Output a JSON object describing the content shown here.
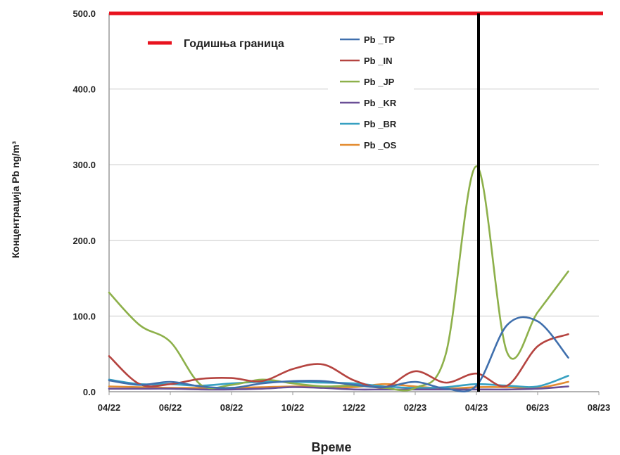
{
  "chart_data": {
    "type": "line",
    "xlabel": "Време",
    "ylabel": "Концентрација Pb ng/m³",
    "ylim": [
      0,
      500
    ],
    "xlim": [
      "2022-04",
      "2023-08"
    ],
    "x_tick_labels": [
      "04/22",
      "06/22",
      "08/22",
      "10/22",
      "12/22",
      "02/23",
      "04/23",
      "06/23",
      "08/23"
    ],
    "y_tick_labels": [
      "0.0",
      "100.0",
      "200.0",
      "300.0",
      "400.0",
      "500.0"
    ],
    "y_ticks": [
      0,
      100,
      200,
      300,
      400,
      500
    ],
    "grid": "horizontal",
    "legend_position": "top-center",
    "limit_line": {
      "name": "Годишња граница",
      "value": 500,
      "color": "#e8121e"
    },
    "vertical_marker": {
      "x": "2023-04",
      "color": "#000000"
    },
    "x": [
      "2022-04",
      "2022-05",
      "2022-06",
      "2022-07",
      "2022-08",
      "2022-09",
      "2022-10",
      "2022-11",
      "2022-12",
      "2023-01",
      "2023-02",
      "2023-03",
      "2023-04",
      "2023-05",
      "2023-06",
      "2023-07"
    ],
    "series": [
      {
        "name": "Pb _TP",
        "color": "#3f6fad",
        "values": [
          15,
          9,
          13,
          7,
          5,
          11,
          14,
          14,
          9,
          6,
          13,
          4,
          8,
          88,
          93,
          45
        ]
      },
      {
        "name": "Pb _IN",
        "color": "#b54440",
        "values": [
          47,
          10,
          10,
          17,
          18,
          14,
          30,
          36,
          15,
          6,
          27,
          12,
          24,
          8,
          60,
          76
        ]
      },
      {
        "name": "Pb _JP",
        "color": "#8db04a",
        "values": [
          131,
          88,
          66,
          9,
          9,
          16,
          11,
          7,
          8,
          5,
          5,
          50,
          298,
          52,
          105,
          159
        ]
      },
      {
        "name": "Pb _KR",
        "color": "#6a4f96",
        "values": [
          4,
          4,
          4,
          3,
          3,
          4,
          6,
          5,
          3,
          3,
          3,
          3,
          3,
          3,
          4,
          7
        ]
      },
      {
        "name": "Pb _BR",
        "color": "#36a0c1",
        "values": [
          16,
          10,
          10,
          8,
          11,
          13,
          13,
          12,
          11,
          7,
          5,
          6,
          10,
          8,
          7,
          21
        ]
      },
      {
        "name": "Pb _OS",
        "color": "#e38b2f",
        "values": [
          7,
          6,
          5,
          5,
          5,
          6,
          7,
          7,
          6,
          10,
          7,
          4,
          6,
          6,
          5,
          13
        ]
      }
    ]
  }
}
